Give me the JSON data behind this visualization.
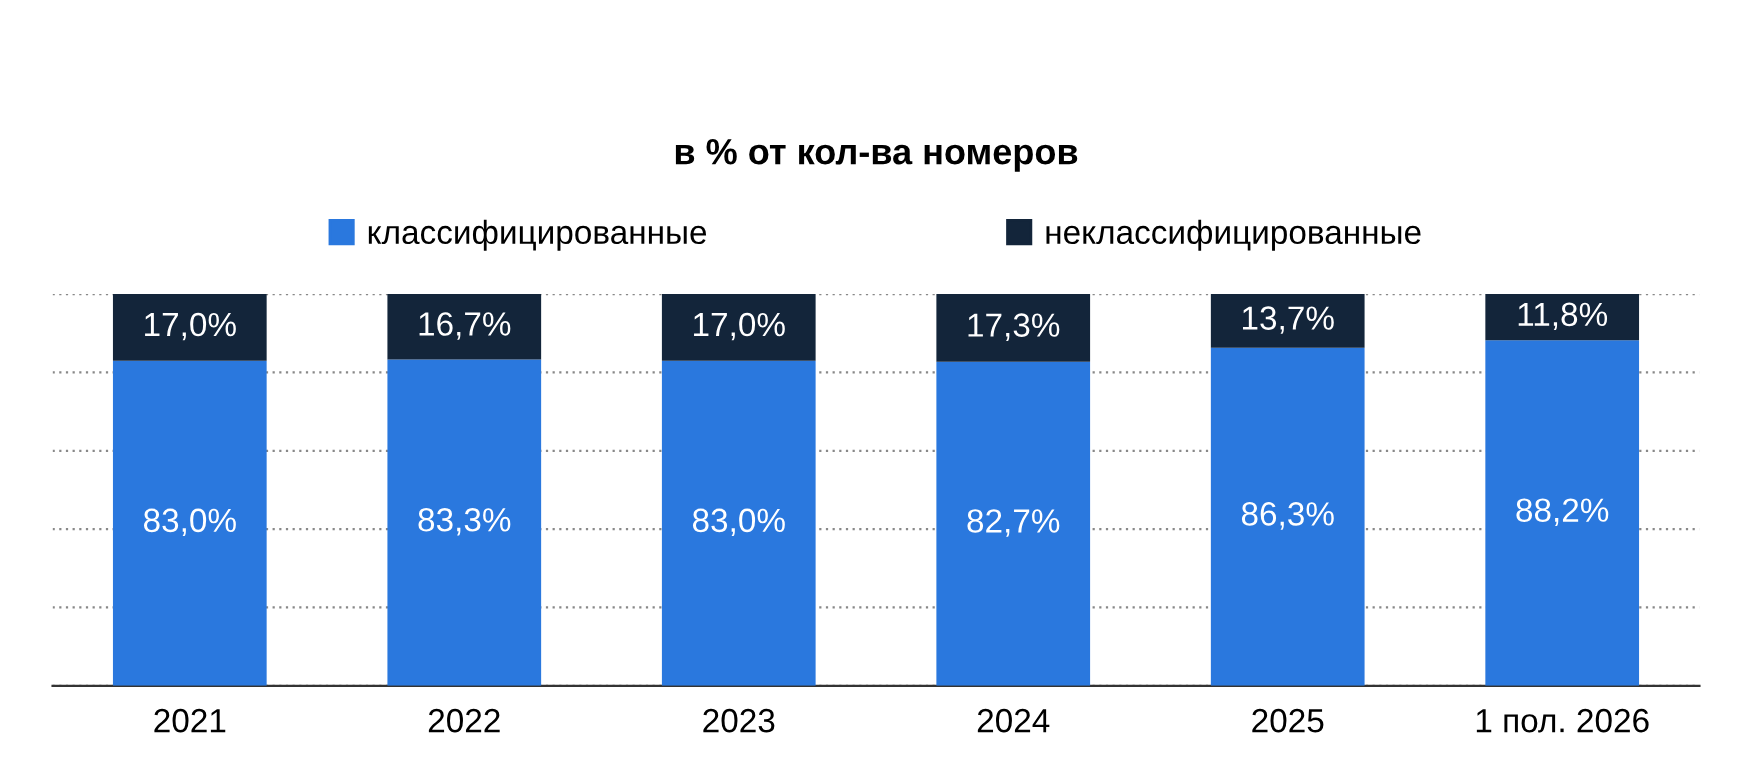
{
  "chart_data": {
    "type": "bar",
    "title": "в % от кол-ва номеров",
    "stacked": true,
    "categories": [
      "2021",
      "2022",
      "2023",
      "2024",
      "2025",
      "1 пол. 2026"
    ],
    "series": [
      {
        "name": "классифицированные",
        "color": "#2a78de",
        "values": [
          83.0,
          83.3,
          83.0,
          82.7,
          86.3,
          88.2
        ],
        "value_labels": [
          "83,0%",
          "83,3%",
          "83,0%",
          "82,7%",
          "86,3%",
          "88,2%"
        ]
      },
      {
        "name": "неклассифицированные",
        "color": "#13253a",
        "values": [
          17.0,
          16.7,
          17.0,
          17.3,
          13.7,
          11.8
        ],
        "value_labels": [
          "17,0%",
          "16,7%",
          "17,0%",
          "17,3%",
          "13,7%",
          "11,8%"
        ]
      }
    ],
    "ylim": [
      0,
      100
    ],
    "yticks": [
      {
        "value": 0,
        "label": null
      },
      {
        "value": 20,
        "label": null
      },
      {
        "value": 40,
        "label": null
      },
      {
        "value": 60,
        "label": null
      },
      {
        "value": 80,
        "label": null
      },
      {
        "value": 100,
        "label": null
      }
    ],
    "grid": "y",
    "legend": "top",
    "tick_labels": "x"
  }
}
